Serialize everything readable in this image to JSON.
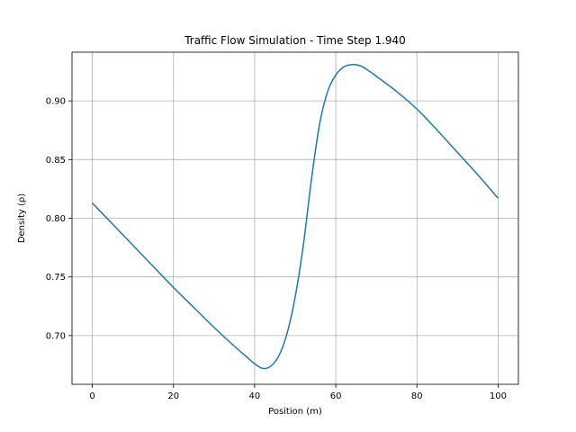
{
  "chart_data": {
    "type": "line",
    "title": "Traffic Flow Simulation - Time Step 1.940",
    "xlabel": "Position (m)",
    "ylabel": "Density (ρ)",
    "xlim": [
      -5,
      105
    ],
    "ylim": [
      0.6585,
      0.9415
    ],
    "xticks": [
      0,
      20,
      40,
      60,
      80,
      100
    ],
    "xtick_labels": [
      "0",
      "20",
      "40",
      "60",
      "80",
      "100"
    ],
    "yticks": [
      0.7,
      0.75,
      0.8,
      0.85,
      0.9
    ],
    "ytick_labels": [
      "0.70",
      "0.75",
      "0.80",
      "0.85",
      "0.90"
    ],
    "grid": true,
    "series": [
      {
        "color": "#1f77b4",
        "x": [
          0,
          5,
          10,
          15,
          20,
          25,
          30,
          35,
          38,
          40,
          42,
          44,
          46,
          48,
          50,
          52,
          54,
          56,
          58,
          60,
          62,
          64,
          66,
          68,
          70,
          75,
          80,
          85,
          90,
          95,
          100
        ],
        "y": [
          0.813,
          0.795,
          0.777,
          0.759,
          0.741,
          0.724,
          0.707,
          0.691,
          0.682,
          0.676,
          0.672,
          0.674,
          0.683,
          0.702,
          0.733,
          0.777,
          0.833,
          0.88,
          0.908,
          0.922,
          0.929,
          0.931,
          0.93,
          0.926,
          0.921,
          0.908,
          0.893,
          0.875,
          0.856,
          0.837,
          0.817
        ]
      }
    ]
  }
}
